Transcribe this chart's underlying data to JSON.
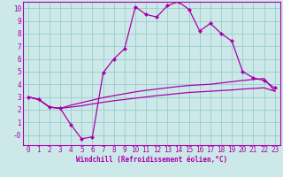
{
  "xlabel": "Windchill (Refroidissement éolien,°C)",
  "bg_color": "#cce8e8",
  "grid_color": "#99cccc",
  "line_color": "#aa00aa",
  "spine_color": "#aa00aa",
  "xlim": [
    -0.5,
    23.5
  ],
  "ylim": [
    -0.8,
    10.5
  ],
  "xticks": [
    0,
    1,
    2,
    3,
    4,
    5,
    6,
    7,
    8,
    9,
    10,
    11,
    12,
    13,
    14,
    15,
    16,
    17,
    18,
    19,
    20,
    21,
    22,
    23
  ],
  "yticks": [
    0,
    1,
    2,
    3,
    4,
    5,
    6,
    7,
    8,
    9,
    10
  ],
  "ytick_labels": [
    "-0",
    "1",
    "2",
    "3",
    "4",
    "5",
    "6",
    "7",
    "8",
    "9",
    "10"
  ],
  "line1_x": [
    0,
    1,
    2,
    3,
    4,
    5,
    6,
    7,
    8,
    9,
    10,
    11,
    12,
    13,
    14,
    15,
    16,
    17,
    18,
    19,
    20,
    21,
    22,
    23
  ],
  "line1_y": [
    3.0,
    2.8,
    2.2,
    2.1,
    0.8,
    -0.3,
    -0.15,
    4.9,
    6.0,
    6.8,
    10.1,
    9.5,
    9.3,
    10.2,
    10.5,
    9.9,
    8.2,
    8.8,
    8.0,
    7.4,
    5.0,
    4.5,
    4.3,
    3.7
  ],
  "line2_x": [
    0,
    1,
    2,
    3,
    4,
    5,
    6,
    7,
    8,
    9,
    10,
    11,
    12,
    13,
    14,
    15,
    16,
    17,
    18,
    19,
    20,
    21,
    22,
    23
  ],
  "line2_y": [
    3.0,
    2.8,
    2.2,
    2.1,
    2.35,
    2.55,
    2.75,
    2.95,
    3.1,
    3.25,
    3.4,
    3.52,
    3.62,
    3.72,
    3.82,
    3.9,
    3.95,
    4.0,
    4.1,
    4.2,
    4.3,
    4.38,
    4.45,
    3.45
  ],
  "line3_x": [
    0,
    1,
    2,
    3,
    4,
    5,
    6,
    7,
    8,
    9,
    10,
    11,
    12,
    13,
    14,
    15,
    16,
    17,
    18,
    19,
    20,
    21,
    22,
    23
  ],
  "line3_y": [
    3.0,
    2.8,
    2.2,
    2.1,
    2.2,
    2.3,
    2.45,
    2.58,
    2.7,
    2.8,
    2.9,
    3.0,
    3.1,
    3.18,
    3.27,
    3.35,
    3.4,
    3.45,
    3.5,
    3.55,
    3.62,
    3.67,
    3.72,
    3.45
  ],
  "tick_fontsize": 5.5,
  "xlabel_fontsize": 5.5,
  "marker_size": 2.2,
  "linewidth": 0.9
}
